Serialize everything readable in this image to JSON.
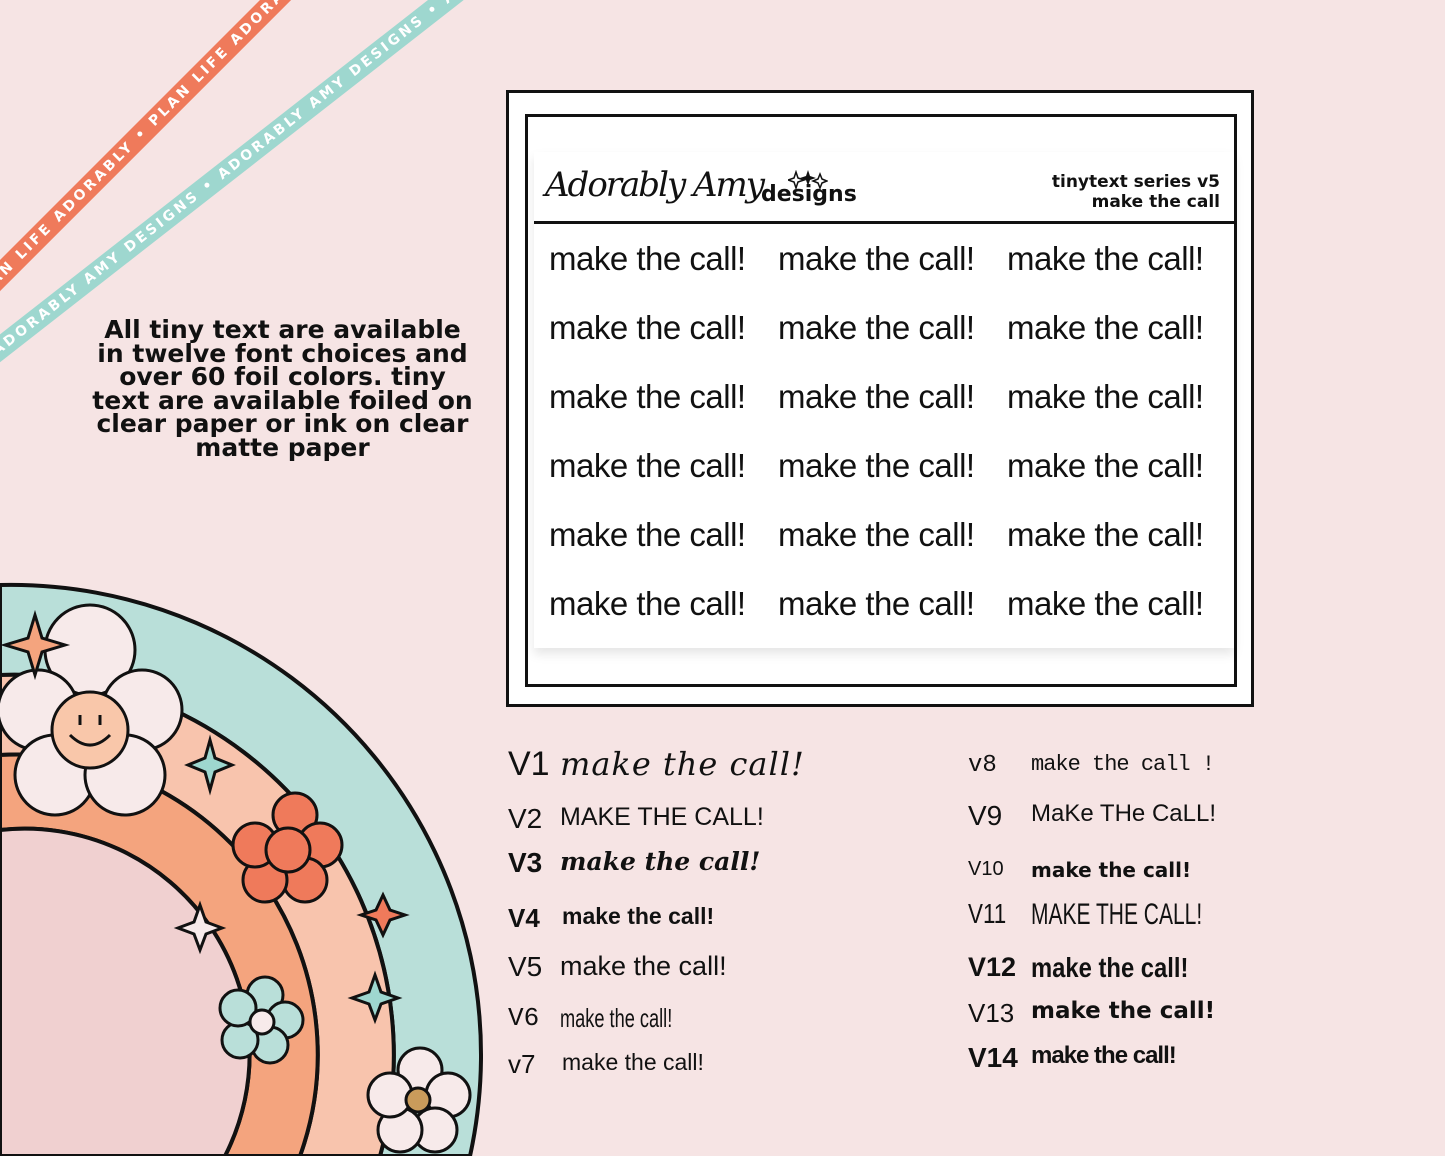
{
  "ribbons": {
    "orange_text": "PLAN LIFE ADORABLY • PLAN LIFE ADORABLY • PLAN LIFE ADORABLY",
    "teal_text": "ADORABLY AMY DESIGNS • ADORABLY AMY DESIGNS • ADORABLY AMY DESIGNS"
  },
  "info": {
    "lines": [
      "All tiny text are available",
      "in twelve font choices and",
      "over 60 foil colors.  tiny",
      "text are available foiled on",
      "clear paper or ink on clear",
      "matte paper"
    ]
  },
  "sheet": {
    "logo_script": "Adorably Amy",
    "logo_designs": "designs",
    "series_line1": "tinytext series v5",
    "series_line2": "make the call",
    "stickers": [
      "make the call!",
      "make the call!",
      "make the call!",
      "make the call!",
      "make the call!",
      "make the call!",
      "make the call!",
      "make the call!",
      "make the call!",
      "make the call!",
      "make the call!",
      "make the call!",
      "make the call!",
      "make the call!",
      "make the call!",
      "make the call!",
      "make the call!",
      "make the call!"
    ]
  },
  "variants_left": [
    {
      "label": "V1",
      "text": "make the call!"
    },
    {
      "label": "V2",
      "text": "MAKE THE CALL!"
    },
    {
      "label": "V3",
      "text": "make the call!"
    },
    {
      "label": "V4",
      "text": "make the call!"
    },
    {
      "label": "V5",
      "text": "make the call!"
    },
    {
      "label": "V6",
      "text": "make the call!"
    },
    {
      "label": "v7",
      "text": "make the call!"
    }
  ],
  "variants_right": [
    {
      "label": "v8",
      "text": "make the call !"
    },
    {
      "label": "V9",
      "text": "MaKe THe CaLL!"
    },
    {
      "label": "V10",
      "text": "make the call!"
    },
    {
      "label": "V11",
      "text": "MAKE THE CALL!"
    },
    {
      "label": "V12",
      "text": "make the call!"
    },
    {
      "label": "V13",
      "text": "make the call!"
    },
    {
      "label": "V14",
      "text": "make the call!"
    }
  ],
  "colors": {
    "background": "#f6e4e4",
    "orange": "#ef7a5b",
    "teal": "#9ed7cf",
    "peach": "#f8c4ad",
    "pink": "#f0d0d0"
  }
}
